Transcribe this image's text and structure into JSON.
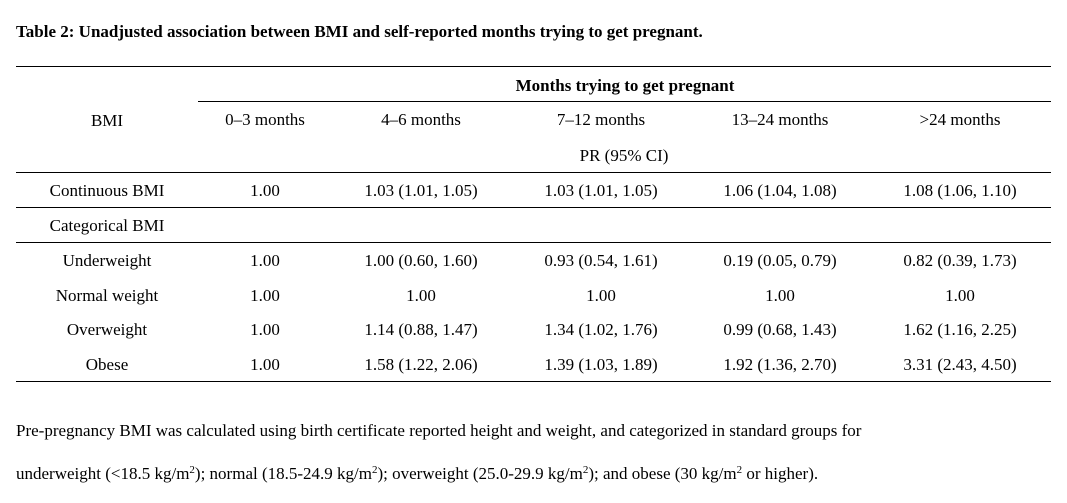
{
  "caption": "Table 2: Unadjusted association between BMI and self-reported months trying to get pregnant.",
  "table": {
    "spanner": "Months trying to get pregnant",
    "stub_header": "BMI",
    "columns": [
      "0–3 months",
      "4–6 months",
      "7–12 months",
      "13–24 months",
      ">24 months"
    ],
    "measure_label": "PR (95% CI)",
    "rows": [
      {
        "label": "Continuous BMI",
        "values": [
          "1.00",
          "1.03 (1.01, 1.05)",
          "1.03 (1.01, 1.05)",
          "1.06 (1.04, 1.08)",
          "1.08 (1.06, 1.10)"
        ]
      },
      {
        "label": "Categorical BMI",
        "values": [
          "",
          "",
          "",
          "",
          ""
        ]
      },
      {
        "label": "Underweight",
        "values": [
          "1.00",
          "1.00 (0.60, 1.60)",
          "0.93 (0.54, 1.61)",
          "0.19 (0.05, 0.79)",
          "0.82 (0.39, 1.73)"
        ]
      },
      {
        "label": "Normal weight",
        "values": [
          "1.00",
          "1.00",
          "1.00",
          "1.00",
          "1.00"
        ]
      },
      {
        "label": "Overweight",
        "values": [
          "1.00",
          "1.14 (0.88, 1.47)",
          "1.34 (1.02, 1.76)",
          "0.99 (0.68, 1.43)",
          "1.62 (1.16, 2.25)"
        ]
      },
      {
        "label": "Obese",
        "values": [
          "1.00",
          "1.58 (1.22, 2.06)",
          "1.39 (1.03, 1.89)",
          "1.92 (1.36, 2.70)",
          "3.31 (2.43, 4.50)"
        ]
      }
    ]
  },
  "footnote": {
    "line1": "Pre-pregnancy BMI was calculated using birth certificate reported height and weight, and categorized in standard groups for",
    "line2": {
      "p1": "underweight (<18.5 kg/m",
      "p2": "); normal (18.5-24.9 kg/m",
      "p3": "); overweight (25.0-29.9 kg/m",
      "p4": "); and obese (30 kg/m",
      "p5": " or higher).",
      "sup": "2"
    }
  }
}
